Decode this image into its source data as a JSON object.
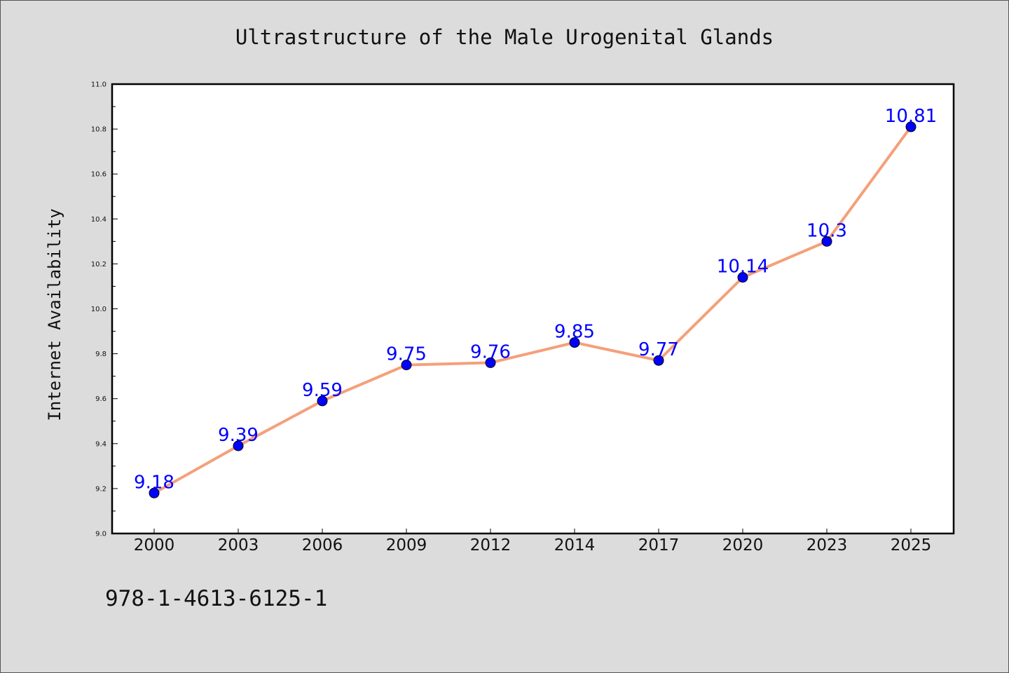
{
  "chart_data": {
    "type": "line",
    "title": "Ultrastructure of the Male Urogenital Glands",
    "xlabel": "",
    "ylabel": "Internet Availability",
    "categories": [
      "2000",
      "2003",
      "2006",
      "2009",
      "2012",
      "2014",
      "2017",
      "2020",
      "2023",
      "2025"
    ],
    "series": [
      {
        "values": [
          9.18,
          9.39,
          9.59,
          9.75,
          9.76,
          9.85,
          9.77,
          10.14,
          10.3,
          10.81
        ],
        "labels": [
          "9.18",
          "9.39",
          "9.59",
          "9.75",
          "9.76",
          "9.85",
          "9.77",
          "10.14",
          "10.3",
          "10.81"
        ],
        "line_color": "#f4a07a",
        "marker_color": "#0000ff"
      }
    ],
    "ylim": [
      9.0,
      11.0
    ],
    "yticks": [
      "9.0",
      "9.2",
      "9.4",
      "9.6",
      "9.8",
      "10.0",
      "10.2",
      "10.4",
      "10.6",
      "10.8",
      "11.0"
    ],
    "grid": false,
    "legend": "none"
  },
  "footer": {
    "isbn": "978-1-4613-6125-1"
  },
  "colors": {
    "background": "#dcdcdc",
    "plot_background": "#ffffff",
    "axis": "#000000"
  }
}
